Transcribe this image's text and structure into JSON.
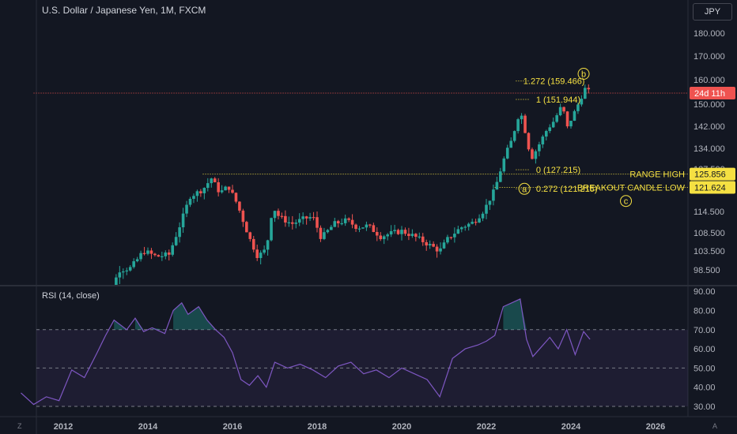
{
  "header": {
    "title": "U.S. Dollar / Japanese Yen, 1M, FXCM",
    "currency": "JPY"
  },
  "rsi": {
    "title": "RSI (14, close)"
  },
  "corner": {
    "left": "Z",
    "right": "A"
  },
  "colors": {
    "bg": "#131722",
    "up": "#26a69a",
    "down": "#ef5350",
    "rsi": "#7e57c2",
    "annotation": "#f5e042",
    "grid": "#1e222d",
    "axis": "#b2b5be"
  },
  "chart_data": [
    {
      "type": "candlestick",
      "x_ticks": [
        "2012",
        "2014",
        "2016",
        "2018",
        "2020",
        "2022",
        "2024",
        "2026"
      ],
      "y_ticks": [
        98.5,
        103.5,
        108.5,
        114.5,
        121.5,
        127.5,
        134.0,
        142.0,
        150.0,
        160.0,
        170.0,
        180.0
      ],
      "y_tick_labels": [
        "98.500",
        "103.500",
        "108.500",
        "114.500",
        "121.500",
        "127.500",
        "134.000",
        "142.000",
        "150.000",
        "160.000",
        "170.000",
        "180.000"
      ],
      "price_labels": [
        {
          "text": "24d 11h",
          "value": 154.5,
          "color": "#ef5350"
        },
        {
          "text": "125.856",
          "value": 125.856,
          "color": "#f5e042"
        },
        {
          "text": "121.624",
          "value": 121.624,
          "color": "#f5e042"
        }
      ],
      "points": [
        [
          2012.8,
          80.0
        ],
        [
          2013.05,
          88.0
        ],
        [
          2013.3,
          98.5
        ],
        [
          2013.6,
          99.0
        ],
        [
          2013.9,
          103.5
        ],
        [
          2014.2,
          102.0
        ],
        [
          2014.5,
          102.5
        ],
        [
          2014.8,
          112.0
        ],
        [
          2015.0,
          119.0
        ],
        [
          2015.3,
          121.0
        ],
        [
          2015.5,
          124.5
        ],
        [
          2015.7,
          120.0
        ],
        [
          2015.9,
          122.0
        ],
        [
          2016.1,
          117.0
        ],
        [
          2016.4,
          107.0
        ],
        [
          2016.6,
          102.0
        ],
        [
          2016.8,
          104.0
        ],
        [
          2016.95,
          116.0
        ],
        [
          2017.1,
          113.0
        ],
        [
          2017.4,
          111.0
        ],
        [
          2017.7,
          112.5
        ],
        [
          2017.9,
          113.0
        ],
        [
          2018.1,
          107.0
        ],
        [
          2018.4,
          111.0
        ],
        [
          2018.7,
          112.0
        ],
        [
          2018.95,
          110.0
        ],
        [
          2019.2,
          110.5
        ],
        [
          2019.5,
          107.5
        ],
        [
          2019.8,
          108.5
        ],
        [
          2020.0,
          109.0
        ],
        [
          2020.3,
          107.5
        ],
        [
          2020.6,
          105.5
        ],
        [
          2020.9,
          103.5
        ],
        [
          2021.1,
          107.0
        ],
        [
          2021.4,
          110.0
        ],
        [
          2021.7,
          111.5
        ],
        [
          2021.95,
          115.0
        ],
        [
          2022.2,
          121.0
        ],
        [
          2022.4,
          130.0
        ],
        [
          2022.6,
          137.0
        ],
        [
          2022.8,
          148.0
        ],
        [
          2022.95,
          138.0
        ],
        [
          2023.05,
          130.5
        ],
        [
          2023.2,
          134.0
        ],
        [
          2023.4,
          140.0
        ],
        [
          2023.6,
          144.0
        ],
        [
          2023.8,
          150.0
        ],
        [
          2023.9,
          141.0
        ],
        [
          2024.05,
          146.0
        ],
        [
          2024.2,
          151.0
        ],
        [
          2024.35,
          157.0
        ],
        [
          2024.45,
          154.5
        ]
      ],
      "annotations": [
        {
          "text": "1.272 (159.466)",
          "x": 2022.8,
          "y": 159.466
        },
        {
          "text": "1 (151.944)",
          "x": 2023.1,
          "y": 151.944
        },
        {
          "text": "0 (127.215)",
          "x": 2023.1,
          "y": 127.215
        },
        {
          "text": "0.272 (121.215)",
          "x": 2023.1,
          "y": 121.215
        },
        {
          "text": "RANGE HIGH",
          "x": 2026.5,
          "y": 125.856
        },
        {
          "text": "BREAKOUT CANDLE LOW",
          "x": 2026.5,
          "y": 121.624
        }
      ],
      "wave_labels": [
        {
          "text": "b",
          "x": 2024.3,
          "y": 162.5
        },
        {
          "text": "a",
          "x": 2022.9,
          "y": 121.2
        },
        {
          "text": "c",
          "x": 2025.3,
          "y": 117.6
        }
      ],
      "levels": [
        {
          "name": "current",
          "value": 154.5,
          "from": 2011.3,
          "style": "dotted",
          "color": "#ef5350"
        },
        {
          "name": "range-high",
          "value": 125.856,
          "from": 2015.3,
          "style": "dotted",
          "color": "#f5e042"
        },
        {
          "name": "breakout-low",
          "value": 121.624,
          "from": 2022.2,
          "style": "dotted",
          "color": "#f5e042"
        }
      ]
    },
    {
      "type": "line",
      "name": "RSI (14, close)",
      "y_ticks": [
        30.0,
        40.0,
        50.0,
        60.0,
        70.0,
        80.0,
        90.0
      ],
      "y_tick_labels": [
        "30.00",
        "40.00",
        "50.00",
        "60.00",
        "70.00",
        "80.00",
        "90.00"
      ],
      "band": [
        30,
        70
      ],
      "x": [
        2011.0,
        2011.3,
        2011.6,
        2011.9,
        2012.2,
        2012.5,
        2012.8,
        2013.0,
        2013.2,
        2013.5,
        2013.7,
        2013.9,
        2014.1,
        2014.4,
        2014.6,
        2014.8,
        2014.95,
        2015.2,
        2015.4,
        2015.6,
        2015.8,
        2016.0,
        2016.2,
        2016.4,
        2016.6,
        2016.8,
        2017.0,
        2017.3,
        2017.6,
        2017.9,
        2018.2,
        2018.5,
        2018.8,
        2019.1,
        2019.4,
        2019.7,
        2020.0,
        2020.3,
        2020.6,
        2020.9,
        2021.2,
        2021.5,
        2021.8,
        2022.0,
        2022.2,
        2022.4,
        2022.6,
        2022.8,
        2022.95,
        2023.1,
        2023.3,
        2023.5,
        2023.7,
        2023.9,
        2024.1,
        2024.3,
        2024.45
      ],
      "y": [
        37,
        31,
        35,
        33,
        49,
        45,
        58,
        67,
        75,
        70,
        76,
        69,
        71,
        68,
        80,
        84,
        78,
        82,
        75,
        70,
        66,
        58,
        44,
        41,
        46,
        40,
        53,
        50,
        52,
        49,
        45,
        51,
        53,
        47,
        49,
        45,
        50,
        47,
        44,
        35,
        55,
        60,
        62,
        64,
        67,
        82,
        84,
        86,
        65,
        56,
        61,
        66,
        60,
        70,
        57,
        69,
        65
      ]
    }
  ]
}
